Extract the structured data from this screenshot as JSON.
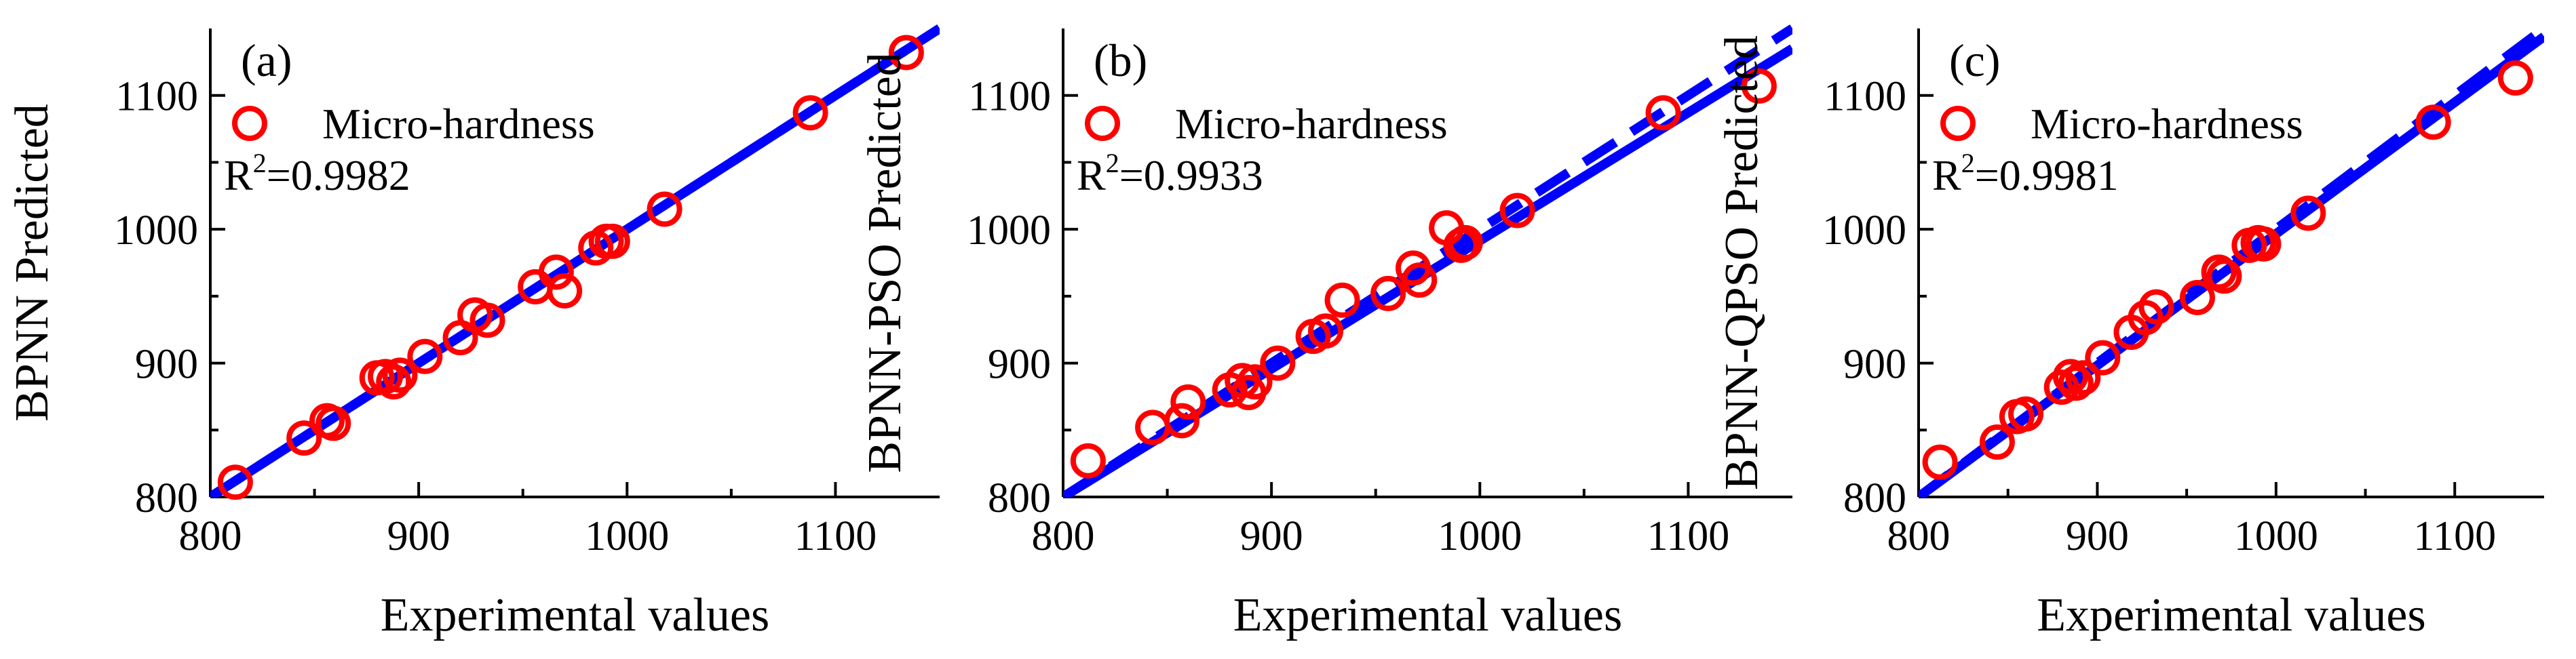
{
  "colors": {
    "points": "#ff0000",
    "fit_line": "#0000ff",
    "axes": "#000000",
    "background": "#ffffff"
  },
  "chart_data": [
    {
      "type": "scatter",
      "panel_label": "(a)",
      "xlabel": "Experimental values",
      "ylabel": "BPNN Predicted",
      "xlim": [
        800,
        1150
      ],
      "ylim": [
        800,
        1150
      ],
      "xticks": [
        800,
        900,
        1000,
        1100
      ],
      "yticks": [
        800,
        900,
        1000,
        1100
      ],
      "legend": "Micro-hardness",
      "r2_label": "R",
      "r2_value": "=0.9982",
      "series": [
        {
          "name": "Micro-hardness",
          "x": [
            812,
            845,
            856,
            859,
            880,
            884,
            888,
            891,
            903,
            920,
            927,
            933,
            956,
            966,
            970,
            985,
            990,
            993,
            1018,
            1088,
            1134
          ],
          "y": [
            811,
            844,
            857,
            855,
            889,
            890,
            886,
            891,
            905,
            919,
            936,
            932,
            957,
            968,
            954,
            986,
            991,
            991,
            1015,
            1087,
            1132
          ]
        }
      ],
      "fit_lines": [
        {
          "style": "solid",
          "x": [
            800,
            1150
          ],
          "y": [
            800,
            1150
          ]
        },
        {
          "style": "dashed",
          "x": [
            800,
            1150
          ],
          "y": [
            800,
            1150
          ]
        }
      ]
    },
    {
      "type": "scatter",
      "panel_label": "(b)",
      "xlabel": "Experimental values",
      "ylabel": "BPNN-PSO Predicted",
      "xlim": [
        800,
        1150
      ],
      "ylim": [
        800,
        1150
      ],
      "xticks": [
        800,
        900,
        1000,
        1100
      ],
      "yticks": [
        800,
        900,
        1000,
        1100
      ],
      "legend": "Micro-hardness",
      "r2_label": "R",
      "r2_value": "=0.9933",
      "series": [
        {
          "name": "Micro-hardness",
          "x": [
            812,
            843,
            857,
            860,
            880,
            886,
            889,
            892,
            903,
            920,
            926,
            934,
            956,
            968,
            971,
            984,
            991,
            993,
            1018,
            1088,
            1134
          ],
          "y": [
            827,
            852,
            857,
            871,
            880,
            887,
            878,
            886,
            900,
            920,
            924,
            947,
            952,
            971,
            962,
            1001,
            988,
            990,
            1014,
            1087,
            1107
          ]
        }
      ],
      "fit_lines": [
        {
          "style": "solid",
          "x": [
            800,
            1150
          ],
          "y": [
            800,
            1135
          ]
        },
        {
          "style": "dashed",
          "x": [
            800,
            1150
          ],
          "y": [
            800,
            1150
          ]
        }
      ]
    },
    {
      "type": "scatter",
      "panel_label": "(c)",
      "xlabel": "Experimental values",
      "ylabel": "BPNN-QPSO Predicted",
      "xlim": [
        800,
        1150
      ],
      "ylim": [
        800,
        1150
      ],
      "xticks": [
        800,
        900,
        1000,
        1100
      ],
      "yticks": [
        800,
        900,
        1000,
        1100
      ],
      "legend": "Micro-hardness",
      "r2_label": "R",
      "r2_value": "=0.9981",
      "series": [
        {
          "name": "Micro-hardness",
          "x": [
            812,
            844,
            855,
            860,
            880,
            885,
            888,
            892,
            903,
            919,
            927,
            933,
            956,
            968,
            971,
            985,
            990,
            993,
            1018,
            1088,
            1134
          ],
          "y": [
            826,
            841,
            860,
            862,
            882,
            890,
            885,
            889,
            904,
            923,
            934,
            942,
            949,
            968,
            965,
            988,
            990,
            989,
            1012,
            1080,
            1113
          ]
        }
      ],
      "fit_lines": [
        {
          "style": "solid",
          "x": [
            800,
            1150
          ],
          "y": [
            800,
            1144
          ]
        },
        {
          "style": "dashed",
          "x": [
            800,
            1150
          ],
          "y": [
            800,
            1150
          ]
        }
      ]
    }
  ]
}
